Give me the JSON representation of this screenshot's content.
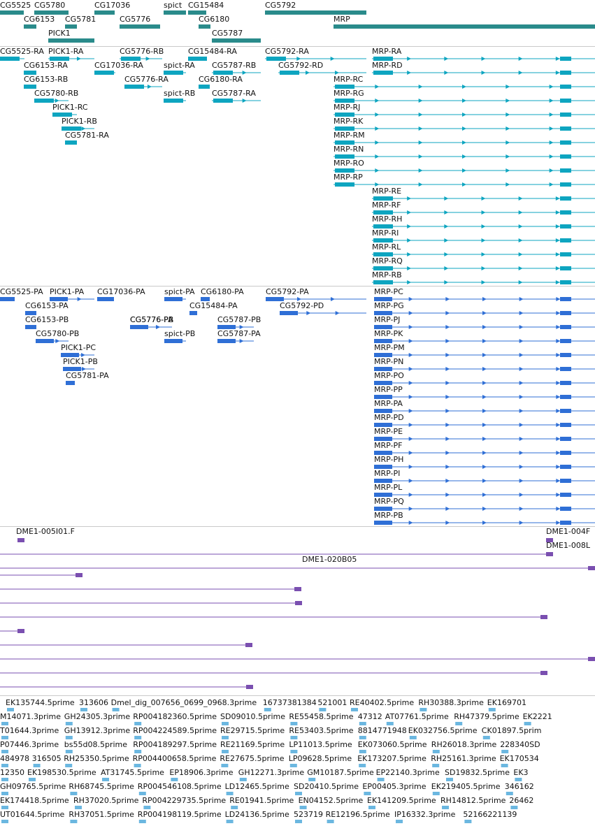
{
  "colors": {
    "gene": "#2a8b8b",
    "transcript": "#0ea5c0",
    "protein": "#2f6fd6",
    "clone": "#7a4fb0",
    "est": "#6bb7e0",
    "label": "#111111",
    "separator": "#c9c9c9"
  },
  "tracks": {
    "genes": {
      "items": [
        {
          "name": "CG5525",
          "blocks": [
            [
              0,
              34
            ]
          ]
        },
        {
          "name": "CG5780",
          "blocks": [
            [
              49,
              98
            ]
          ]
        },
        {
          "name": "CG17036",
          "blocks": [
            [
              135,
              164
            ]
          ]
        },
        {
          "name": "spict",
          "blocks": [
            [
              234,
              266
            ]
          ]
        },
        {
          "name": "CG15484",
          "blocks": [
            [
              269,
              295
            ]
          ]
        },
        {
          "name": "CG5792",
          "blocks": [
            [
              379,
              524
            ]
          ]
        },
        {
          "name": "CG6153",
          "blocks": [
            [
              34,
              52
            ]
          ]
        },
        {
          "name": "CG5781",
          "blocks": [
            [
              93,
              110
            ]
          ]
        },
        {
          "name": "CG5776",
          "blocks": [
            [
              171,
              229
            ]
          ]
        },
        {
          "name": "CG6180",
          "blocks": [
            [
              284,
              301
            ]
          ]
        },
        {
          "name": "MRP",
          "blocks": [
            [
              477,
              851
            ]
          ]
        },
        {
          "name": "PICK1",
          "blocks": [
            [
              69,
              135
            ]
          ]
        },
        {
          "name": "CG5787",
          "blocks": [
            [
              303,
              373
            ]
          ]
        }
      ]
    },
    "transcripts": {
      "items": [
        {
          "name": "CG5525-RA",
          "start": 0,
          "end": 35
        },
        {
          "name": "PICK1-RA",
          "start": 69,
          "end": 135
        },
        {
          "name": "CG5776-RB",
          "start": 171,
          "end": 232
        },
        {
          "name": "CG15484-RA",
          "start": 269,
          "end": 296
        },
        {
          "name": "CG5792-RA",
          "start": 379,
          "end": 524
        },
        {
          "name": "MRP-RA",
          "start": 532,
          "end": 851
        },
        {
          "name": "CG6153-RA",
          "start": 34,
          "end": 52
        },
        {
          "name": "CG17036-RA",
          "start": 135,
          "end": 165
        },
        {
          "name": "spict-RA",
          "start": 234,
          "end": 266
        },
        {
          "name": "CG5787-RB",
          "start": 303,
          "end": 373
        },
        {
          "name": "CG5792-RD",
          "start": 398,
          "end": 524
        },
        {
          "name": "MRP-RD",
          "start": 532,
          "end": 851
        },
        {
          "name": "CG6153-RB",
          "start": 34,
          "end": 52
        },
        {
          "name": "CG5776-RA",
          "start": 178,
          "end": 232
        },
        {
          "name": "CG6180-RA",
          "start": 284,
          "end": 300
        },
        {
          "name": "MRP-RC",
          "start": 477,
          "end": 851
        },
        {
          "name": "CG5780-RB",
          "start": 49,
          "end": 98
        },
        {
          "name": "spict-RB",
          "start": 234,
          "end": 266
        },
        {
          "name": "CG5787-RA",
          "start": 303,
          "end": 373
        },
        {
          "name": "MRP-RG",
          "start": 477,
          "end": 851
        },
        {
          "name": "PICK1-RC",
          "start": 75,
          "end": 110
        },
        {
          "name": "MRP-RJ",
          "start": 477,
          "end": 851
        },
        {
          "name": "PICK1-RB",
          "start": 88,
          "end": 135
        },
        {
          "name": "MRP-RK",
          "start": 477,
          "end": 851
        },
        {
          "name": "CG5781-RA",
          "start": 93,
          "end": 110
        },
        {
          "name": "MRP-RM",
          "start": 477,
          "end": 851
        },
        {
          "name": "MRP-RN",
          "start": 477,
          "end": 851
        },
        {
          "name": "MRP-RO",
          "start": 477,
          "end": 851
        },
        {
          "name": "MRP-RP",
          "start": 477,
          "end": 851
        },
        {
          "name": "MRP-RE",
          "start": 532,
          "end": 851
        },
        {
          "name": "MRP-RF",
          "start": 532,
          "end": 851
        },
        {
          "name": "MRP-RH",
          "start": 532,
          "end": 851
        },
        {
          "name": "MRP-RI",
          "start": 532,
          "end": 851
        },
        {
          "name": "MRP-RL",
          "start": 532,
          "end": 851
        },
        {
          "name": "MRP-RQ",
          "start": 532,
          "end": 851
        },
        {
          "name": "MRP-RB",
          "start": 532,
          "end": 851
        }
      ]
    },
    "proteins": {
      "items": [
        {
          "name": "CG5525-PA",
          "start": 0,
          "end": 21
        },
        {
          "name": "PICK1-PA",
          "start": 71,
          "end": 135
        },
        {
          "name": "CG17036-PA",
          "start": 139,
          "end": 163
        },
        {
          "name": "spict-PA",
          "start": 235,
          "end": 266
        },
        {
          "name": "CG6180-PA",
          "start": 287,
          "end": 300
        },
        {
          "name": "CG5792-PA",
          "start": 380,
          "end": 524
        },
        {
          "name": "MRP-PC",
          "start": 535,
          "end": 851
        },
        {
          "name": "CG6153-PA",
          "start": 36,
          "end": 52
        },
        {
          "name": "CG15484-PA",
          "start": 271,
          "end": 282
        },
        {
          "name": "CG5792-PD",
          "start": 400,
          "end": 524
        },
        {
          "name": "MRP-PG",
          "start": 535,
          "end": 851
        },
        {
          "name": "CG6153-PB",
          "start": 36,
          "end": 52
        },
        {
          "name": "CG5776-PB",
          "start": 186,
          "end": 246
        },
        {
          "name": "MRP-PJ",
          "start": 535,
          "end": 851
        },
        {
          "name": "CG5776-PA",
          "start": 186,
          "end": 246
        },
        {
          "name": "CG5787-PB",
          "start": 311,
          "end": 363
        },
        {
          "name": "CG5780-PB",
          "start": 51,
          "end": 98
        },
        {
          "name": "MRP-PK",
          "start": 535,
          "end": 851
        },
        {
          "name": "spict-PB",
          "start": 235,
          "end": 266
        },
        {
          "name": "CG5787-PA",
          "start": 311,
          "end": 363
        },
        {
          "name": "MRP-PM",
          "start": 535,
          "end": 851
        },
        {
          "name": "PICK1-PC",
          "start": 87,
          "end": 135
        },
        {
          "name": "MRP-PN",
          "start": 535,
          "end": 851
        },
        {
          "name": "PICK1-PB",
          "start": 90,
          "end": 135
        },
        {
          "name": "MRP-PO",
          "start": 535,
          "end": 851
        },
        {
          "name": "CG5781-PA",
          "start": 94,
          "end": 107
        },
        {
          "name": "MRP-PP",
          "start": 535,
          "end": 851
        },
        {
          "name": "MRP-PA",
          "start": 535,
          "end": 851
        },
        {
          "name": "MRP-PD",
          "start": 535,
          "end": 851
        },
        {
          "name": "MRP-PE",
          "start": 535,
          "end": 851
        },
        {
          "name": "MRP-PF",
          "start": 535,
          "end": 851
        },
        {
          "name": "MRP-PH",
          "start": 535,
          "end": 851
        },
        {
          "name": "MRP-PI",
          "start": 535,
          "end": 851
        },
        {
          "name": "MRP-PL",
          "start": 535,
          "end": 851
        },
        {
          "name": "MRP-PQ",
          "start": 535,
          "end": 851
        },
        {
          "name": "MRP-PB",
          "start": 535,
          "end": 851
        }
      ]
    },
    "clones": {
      "items": [
        {
          "name": "DME1-005I01.F",
          "start": 23,
          "end": 35
        },
        {
          "name": "DME1-004F",
          "start": 781,
          "end": 791
        },
        {
          "name": "DME1-008L",
          "start": 0,
          "end": 791
        },
        {
          "name": "DME1-020B05",
          "start": 0,
          "end": 851
        },
        {
          "name": "",
          "start": 0,
          "end": 118
        },
        {
          "name": "",
          "start": 0,
          "end": 431
        },
        {
          "name": "",
          "start": 0,
          "end": 432
        },
        {
          "name": "",
          "start": 0,
          "end": 783
        },
        {
          "name": "",
          "start": 0,
          "end": 35
        },
        {
          "name": "",
          "start": 0,
          "end": 361
        },
        {
          "name": "",
          "start": 0,
          "end": 851
        },
        {
          "name": "",
          "start": 0,
          "end": 783
        },
        {
          "name": "",
          "start": 0,
          "end": 362
        }
      ]
    },
    "ests": {
      "rows": [
        [
          "EK135744.5prime",
          "313606",
          "Dmel_dig_007656_0699_0968.3prime",
          "16737381384",
          "521001",
          "RE40402.5prime",
          "RH30388.3prime",
          "EK169701"
        ],
        [
          "M14071.3prime",
          "GH24305.3prime",
          "RP004182360.5prime",
          "SD09010.5prime",
          "RE55458.5prime",
          "47312",
          "AT07761.5prime",
          "RH47379.5prime",
          "EK2221"
        ],
        [
          "T01644.3prime",
          "GH13912.3prime",
          "RP004224589.5prime",
          "RE29715.5prime",
          "RE53403.5prime",
          "8814771948",
          "EK032756.5prime",
          "CK01897.5prim"
        ],
        [
          "P07446.3prime",
          "bs55d08.5prime",
          "RP004189297.5prime",
          "RE21169.5prime",
          "LP11013.5prime",
          "EK073060.5prime",
          "RH26018.3prime",
          "228340SD"
        ],
        [
          "484978",
          "316505",
          "RH25350.5prime",
          "RP004400658.5prime",
          "RE27675.5prime",
          "LP09628.5prime",
          "EK173207.5prime",
          "RH25161.3prime",
          "EK170534"
        ],
        [
          "12350",
          "EK198530.5prime",
          "AT31745.5prime",
          "EP18906.3prime",
          "GH12271.3prime",
          "GM10187.5prime",
          "EP22140.3prime",
          "SD19832.5prime",
          "EK3"
        ],
        [
          "GH09765.5prime",
          "RH68745.5prime",
          "RP004546108.5prime",
          "LD12465.5prime",
          "SD20410.5prime",
          "EP00405.3prime",
          "EK219405.5prime",
          "346162"
        ],
        [
          "EK174418.5prime",
          "RH37020.5prime",
          "RP004229735.5prime",
          "RE01941.5prime",
          "EN04152.5prime",
          "EK141209.5prime",
          "RH14812.5prime",
          "26462"
        ],
        [
          "UT01644.5prime",
          "RH37051.5prime",
          "RP004198119.5prime",
          "LD24136.5prime",
          "523719",
          "RE12196.5prime",
          "IP16332.3prime",
          "52166221139"
        ]
      ]
    }
  }
}
